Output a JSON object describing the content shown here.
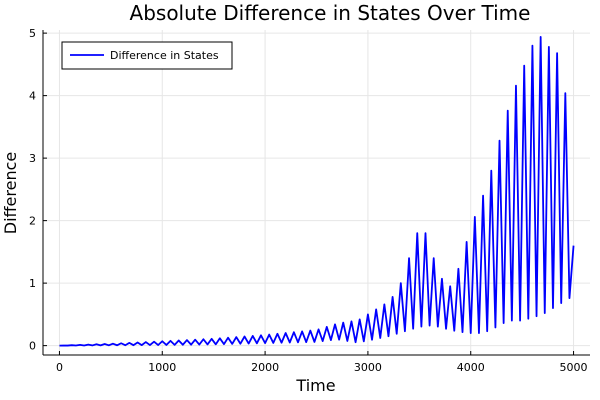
{
  "chart_data": {
    "type": "line",
    "title": "Absolute Difference in States Over Time",
    "xlabel": "Time",
    "ylabel": "Difference",
    "xlim": [
      -160,
      5160
    ],
    "ylim": [
      -0.15,
      5.05
    ],
    "xticks": [
      0,
      1000,
      2000,
      3000,
      4000,
      5000
    ],
    "yticks": [
      0,
      1,
      2,
      3,
      4,
      5
    ],
    "grid": true,
    "legend_position": "top-left",
    "series": [
      {
        "name": "Difference in States",
        "color": "#0000ff",
        "oscillation_period": 80,
        "lower_envelope": {
          "x": [
            0,
            500,
            1000,
            1500,
            2000,
            2500,
            2700,
            2900,
            3000,
            3200,
            3300,
            3400,
            3500,
            3600,
            3700,
            3800,
            3900,
            4000,
            4100,
            4200,
            4300,
            4400,
            4500,
            4600,
            4700,
            4800,
            4900,
            5000
          ],
          "y": [
            0,
            0.005,
            0.01,
            0.02,
            0.04,
            0.06,
            0.1,
            0.05,
            0.08,
            0.15,
            0.2,
            0.25,
            0.3,
            0.32,
            0.3,
            0.25,
            0.22,
            0.2,
            0.2,
            0.25,
            0.35,
            0.4,
            0.4,
            0.45,
            0.5,
            0.6,
            0.7,
            0.8
          ]
        },
        "upper_envelope": {
          "x": [
            0,
            500,
            1000,
            1500,
            2000,
            2500,
            2700,
            2800,
            2900,
            3000,
            3100,
            3200,
            3300,
            3400,
            3500,
            3550,
            3600,
            3700,
            3800,
            3900,
            4000,
            4100,
            4200,
            4300,
            4400,
            4500,
            4600,
            4650,
            4700,
            4800,
            4900,
            5000
          ],
          "y": [
            0,
            0.03,
            0.07,
            0.11,
            0.17,
            0.25,
            0.35,
            0.38,
            0.4,
            0.5,
            0.6,
            0.7,
            0.9,
            1.4,
            1.9,
            1.85,
            1.6,
            1.1,
            0.95,
            1.3,
            1.9,
            2.3,
            2.8,
            3.4,
            4.0,
            4.4,
            4.8,
            5.0,
            4.9,
            4.7,
            4.65,
            1.6
          ]
        }
      }
    ]
  }
}
